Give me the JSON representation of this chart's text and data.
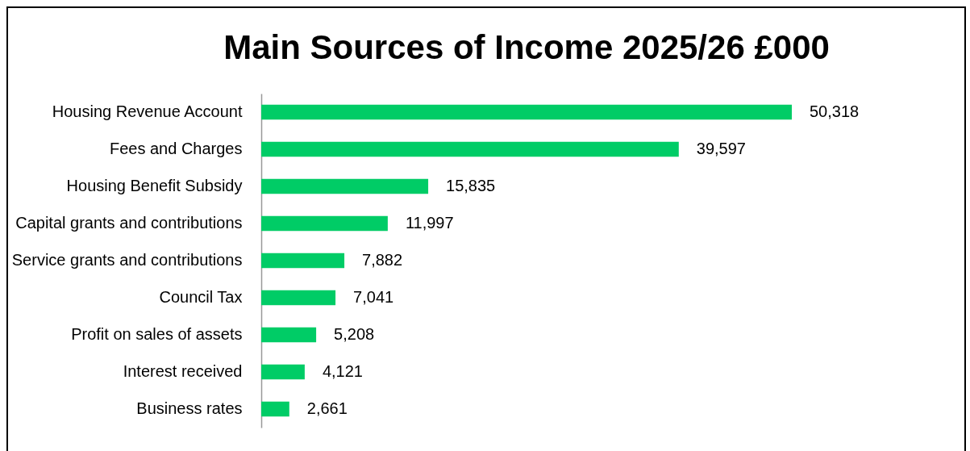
{
  "chart_data": {
    "type": "bar",
    "title": "Main Sources of Income 2025/26 £000",
    "orientation": "horizontal",
    "categories": [
      "Housing Revenue Account",
      "Fees and Charges",
      "Housing Benefit Subsidy",
      "Capital grants and contributions",
      "Service grants and contributions",
      "Council Tax",
      "Profit on sales of assets",
      "Interest received",
      "Business rates"
    ],
    "values": [
      50318,
      39597,
      15835,
      11997,
      7882,
      7041,
      5208,
      4121,
      2661
    ],
    "value_labels": [
      "50,318",
      "39,597",
      "15,835",
      "11,997",
      "7,882",
      "7,041",
      "5,208",
      "4,121",
      "2,661"
    ],
    "color": "#00cc66"
  }
}
